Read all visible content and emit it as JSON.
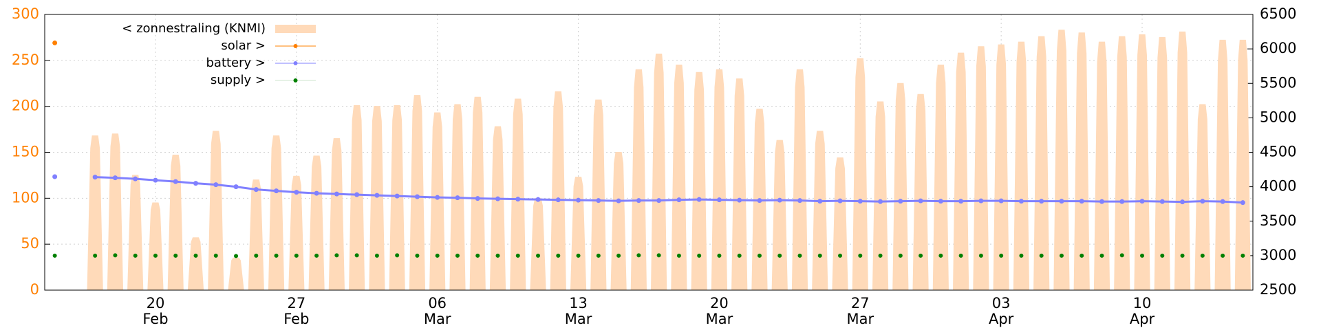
{
  "chart_data": {
    "type": "area",
    "categories": [
      null,
      null,
      null,
      null,
      null,
      "20\nFeb",
      null,
      null,
      null,
      null,
      null,
      null,
      "27\nFeb",
      null,
      null,
      null,
      null,
      null,
      null,
      "06\nMar",
      null,
      null,
      null,
      null,
      null,
      null,
      "13\nMar",
      null,
      null,
      null,
      null,
      null,
      null,
      "20\nMar",
      null,
      null,
      null,
      null,
      null,
      null,
      "27\nMar",
      null,
      null,
      null,
      null,
      null,
      null,
      "03\nApr",
      null,
      null,
      null,
      null,
      null,
      null,
      "10\nApr",
      null,
      null,
      null,
      null,
      null
    ],
    "ylim": [
      0,
      300
    ],
    "yticks": [
      0,
      50,
      100,
      150,
      200,
      250,
      300
    ],
    "y2lim": [
      2500,
      6500
    ],
    "y2ticks": [
      2500,
      3000,
      3500,
      4000,
      4500,
      5000,
      5500,
      6000,
      6500
    ],
    "grid": true,
    "legend": "top-left",
    "series": [
      {
        "name": "< zonnestraling (KNMI)",
        "type": "area",
        "color": "#ffdab9",
        "values": [
          0,
          0,
          168,
          170,
          125,
          95,
          147,
          57,
          173,
          35,
          120,
          168,
          124,
          146,
          165,
          201,
          200,
          201,
          212,
          193,
          202,
          210,
          178,
          208,
          100,
          216,
          123,
          207,
          150,
          240,
          257,
          245,
          237,
          240,
          230,
          197,
          163,
          240,
          173,
          144,
          252,
          205,
          225,
          213,
          245,
          258,
          265,
          267,
          270,
          276,
          283,
          280,
          270,
          276,
          278,
          275,
          281,
          202,
          272,
          272
        ]
      },
      {
        "name": "solar >",
        "type": "line",
        "color": "#ff8000",
        "values": [
          269,
          null,
          null,
          null,
          null,
          null,
          null,
          null,
          null,
          null,
          null,
          null,
          null,
          null,
          null,
          null,
          null,
          null,
          null,
          null,
          null,
          null,
          null,
          null,
          null,
          null,
          null,
          null,
          null,
          null,
          null,
          null,
          null,
          null,
          null,
          null,
          null,
          null,
          null,
          null,
          null,
          null,
          null,
          null,
          null,
          null,
          null,
          null,
          null,
          null,
          null,
          null,
          null,
          null,
          null,
          null,
          null,
          null,
          null,
          null
        ]
      },
      {
        "name": "battery >",
        "type": "line",
        "color": "#8080ff",
        "axis": "y2",
        "values": [
          4146,
          null,
          4140,
          4130,
          4115,
          4095,
          4075,
          4050,
          4030,
          4000,
          3960,
          3940,
          3920,
          3905,
          3895,
          3885,
          3875,
          3865,
          3855,
          3845,
          3840,
          3830,
          3825,
          3820,
          3815,
          3810,
          3805,
          3800,
          3795,
          3800,
          3800,
          3810,
          3815,
          3810,
          3805,
          3800,
          3805,
          3800,
          3790,
          3795,
          3790,
          3785,
          3790,
          3795,
          3790,
          3790,
          3795,
          3795,
          3790,
          3790,
          3790,
          3790,
          3785,
          3785,
          3790,
          3785,
          3780,
          3790,
          3785,
          3770
        ]
      },
      {
        "name": "supply >",
        "type": "scatter",
        "color": "#008000",
        "axis": "y2",
        "values": [
          3000,
          null,
          3000,
          3005,
          3000,
          3000,
          3000,
          3000,
          3000,
          2995,
          3000,
          3000,
          3000,
          3000,
          3005,
          3005,
          3000,
          3005,
          3000,
          3000,
          3000,
          3000,
          3000,
          3000,
          3000,
          3000,
          3000,
          3000,
          3000,
          3005,
          3005,
          3000,
          3000,
          3000,
          3000,
          3000,
          3000,
          3000,
          3000,
          3000,
          3000,
          3000,
          3000,
          3000,
          3000,
          3000,
          3000,
          3000,
          3000,
          3000,
          3000,
          3000,
          3000,
          3005,
          3000,
          3000,
          3000,
          3000,
          3000,
          3000
        ]
      }
    ]
  }
}
